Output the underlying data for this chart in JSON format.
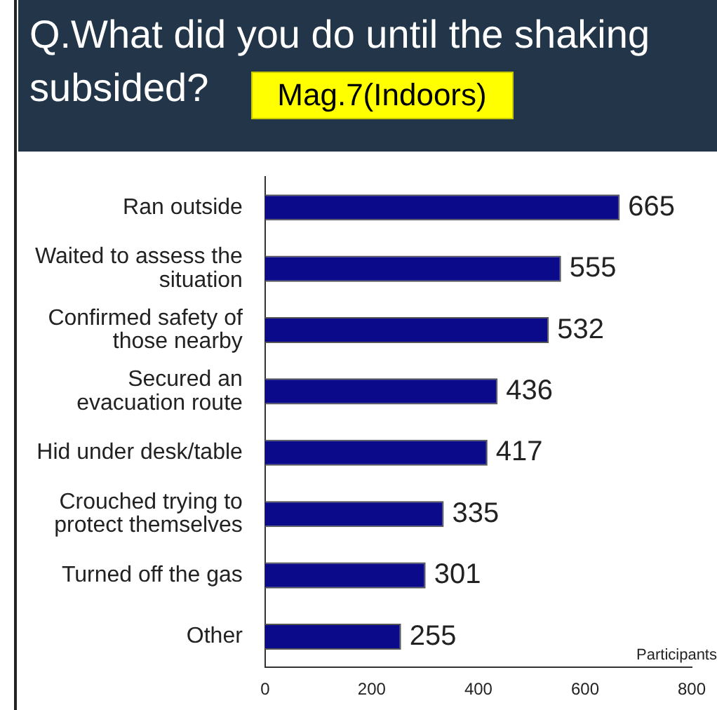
{
  "chart_data": {
    "type": "bar",
    "orientation": "horizontal",
    "title": "Q.What did you do until the shaking subsided?",
    "subtitle": "Mag.7(Indoors)",
    "xlabel": "Participants",
    "categories": [
      "Ran outside",
      "Waited to assess the situation",
      "Confirmed safety of those nearby",
      "Secured an evacuation route",
      "Hid under desk/table",
      "Crouched trying to protect themselves",
      "Turned off the gas",
      "Other"
    ],
    "values": [
      665,
      555,
      532,
      436,
      417,
      335,
      301,
      255
    ],
    "color": "#0a0a8a",
    "xlim": [
      0,
      800
    ],
    "xticks": [
      0,
      200,
      400,
      600,
      800
    ],
    "grid": false,
    "legend": false,
    "data_labels": true
  }
}
